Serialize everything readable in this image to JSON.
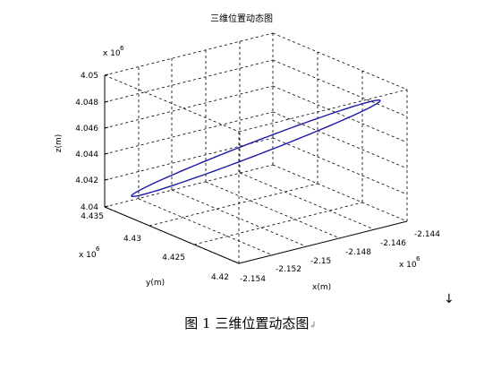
{
  "chart_data": {
    "type": "line",
    "title": "三维位置动态图",
    "xlabel": "x(m)",
    "ylabel": "y(m)",
    "zlabel": "z(m)",
    "x_ticks": [
      "-2.154",
      "-2.152",
      "-2.15",
      "-2.148",
      "-2.146",
      "-2.144"
    ],
    "y_ticks": [
      "4.42",
      "4.425",
      "4.43",
      "4.435"
    ],
    "z_ticks": [
      "4.04",
      "4.042",
      "4.044",
      "4.046",
      "4.048",
      "4.05"
    ],
    "x_multiplier": "x 10",
    "x_exponent": "6",
    "y_multiplier": "x 10",
    "y_exponent": "6",
    "z_multiplier": "x 10",
    "z_exponent": "6",
    "xlim": [
      -2154000,
      -2144000
    ],
    "ylim": [
      4420000,
      4435000
    ],
    "zlim": [
      4040000,
      4050000
    ],
    "grid": true,
    "series_color": "#1a1aa8",
    "curve": {
      "shape": "ellipse",
      "points_xyz": [
        [
          -2144800,
          4421500,
          4049000
        ],
        [
          -2149000,
          4427500,
          4045000
        ],
        [
          -2153200,
          4433500,
          4041000
        ]
      ]
    }
  },
  "caption": "图 1  三维位置动态图",
  "mark_char": "↲",
  "side_mark": "↓"
}
